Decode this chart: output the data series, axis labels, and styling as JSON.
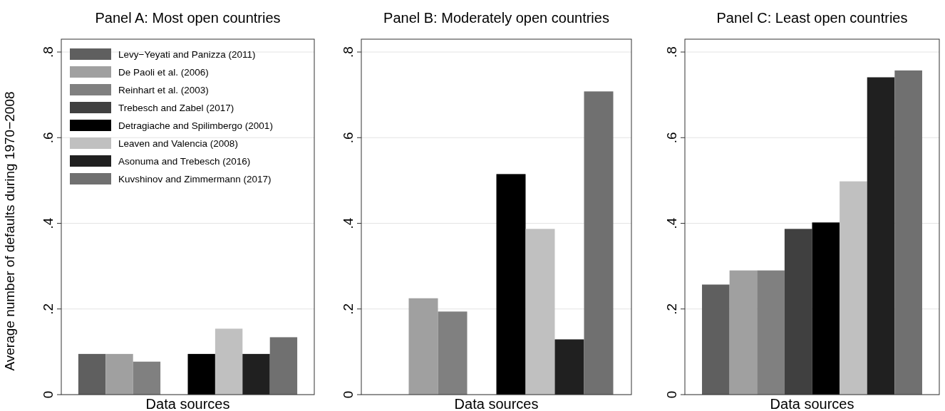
{
  "chart_data": [
    {
      "type": "bar",
      "title": "Panel A: Most open countries",
      "xlabel": "Data sources",
      "ylabel": "Average number of defaults during 1970−2008",
      "categories": [
        null
      ],
      "ylim": [
        0,
        0.83
      ],
      "yticks": [
        {
          "value": 0,
          "label": "0"
        },
        {
          "value": 0.2,
          "label": ".2"
        },
        {
          "value": 0.4,
          "label": ".4"
        },
        {
          "value": 0.6,
          "label": ".6"
        },
        {
          "value": 0.8,
          "label": ".8"
        }
      ],
      "grid": "y",
      "legend": "top left",
      "series": [
        {
          "name": "Levy−Yeyati and Panizza (2011)",
          "color": "#5f5f5f",
          "values": [
            0.095
          ]
        },
        {
          "name": "De Paoli et al. (2006)",
          "color": "#a0a0a0",
          "values": [
            0.095
          ]
        },
        {
          "name": "Reinhart et al. (2003)",
          "color": "#808080",
          "values": [
            0.077
          ]
        },
        {
          "name": "Trebesch and Zabel (2017)",
          "color": "#404040",
          "values": [
            0
          ]
        },
        {
          "name": "Detragiache and Spilimbergo (2001)",
          "color": "#000000",
          "values": [
            0.095
          ]
        },
        {
          "name": "Leaven and Valencia (2008)",
          "color": "#c0c0c0",
          "values": [
            0.154
          ]
        },
        {
          "name": "Asonuma and Trebesch (2016)",
          "color": "#202020",
          "values": [
            0.095
          ]
        },
        {
          "name": "Kuvshinov and Zimmermann (2017)",
          "color": "#707070",
          "values": [
            0.134
          ]
        }
      ]
    },
    {
      "type": "bar",
      "title": "Panel B: Moderately open countries",
      "xlabel": "Data sources",
      "categories": [
        null
      ],
      "ylim": [
        0,
        0.83
      ],
      "yticks": [
        {
          "value": 0,
          "label": "0"
        },
        {
          "value": 0.2,
          "label": ".2"
        },
        {
          "value": 0.4,
          "label": ".4"
        },
        {
          "value": 0.6,
          "label": ".6"
        },
        {
          "value": 0.8,
          "label": ".8"
        }
      ],
      "grid": "y",
      "series": [
        {
          "color": "#5f5f5f",
          "values": [
            0
          ]
        },
        {
          "color": "#a0a0a0",
          "values": [
            0.225
          ]
        },
        {
          "color": "#808080",
          "values": [
            0.194
          ]
        },
        {
          "color": "#404040",
          "values": [
            0
          ]
        },
        {
          "color": "#000000",
          "values": [
            0.515
          ]
        },
        {
          "color": "#c0c0c0",
          "values": [
            0.387
          ]
        },
        {
          "color": "#202020",
          "values": [
            0.129
          ]
        },
        {
          "color": "#707070",
          "values": [
            0.708
          ]
        }
      ]
    },
    {
      "type": "bar",
      "title": "Panel C: Least open countries",
      "xlabel": "Data sources",
      "categories": [
        null
      ],
      "ylim": [
        0,
        0.83
      ],
      "yticks": [
        {
          "value": 0,
          "label": "0"
        },
        {
          "value": 0.2,
          "label": ".2"
        },
        {
          "value": 0.4,
          "label": ".4"
        },
        {
          "value": 0.6,
          "label": ".6"
        },
        {
          "value": 0.8,
          "label": ".8"
        }
      ],
      "grid": "y",
      "series": [
        {
          "color": "#5f5f5f",
          "values": [
            0.257
          ]
        },
        {
          "color": "#a0a0a0",
          "values": [
            0.29
          ]
        },
        {
          "color": "#808080",
          "values": [
            0.29
          ]
        },
        {
          "color": "#404040",
          "values": [
            0.387
          ]
        },
        {
          "color": "#000000",
          "values": [
            0.402
          ]
        },
        {
          "color": "#c0c0c0",
          "values": [
            0.498
          ]
        },
        {
          "color": "#202020",
          "values": [
            0.741
          ]
        },
        {
          "color": "#707070",
          "values": [
            0.757
          ]
        }
      ]
    }
  ]
}
